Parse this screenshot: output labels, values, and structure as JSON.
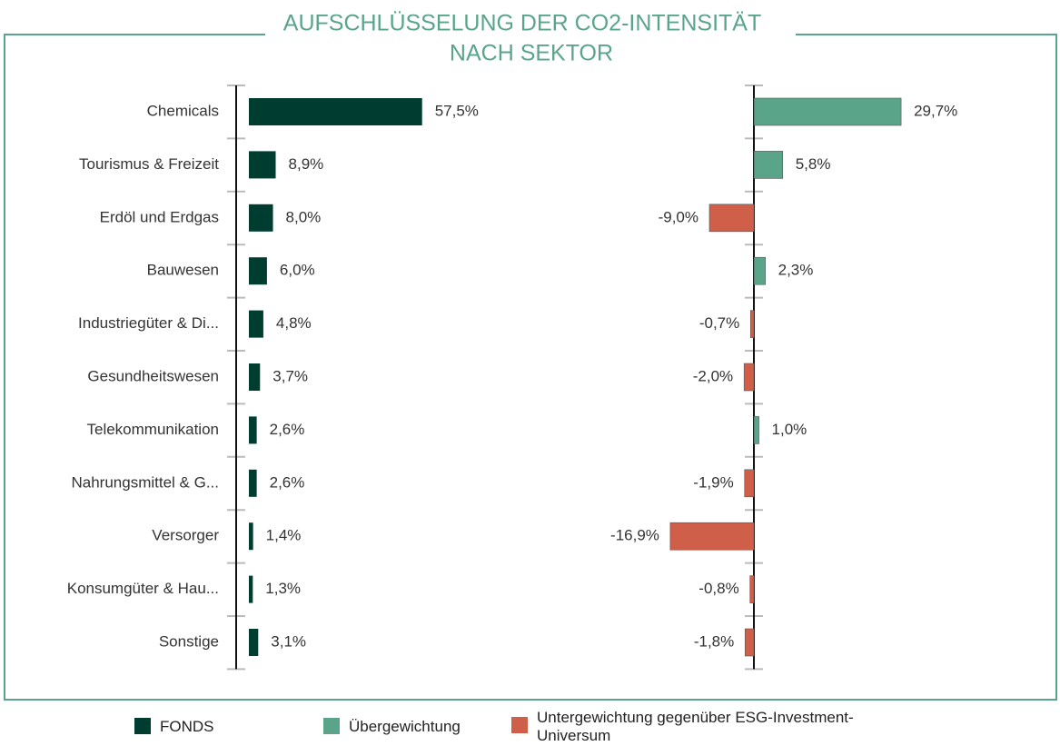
{
  "chart_data": [
    {
      "type": "hbar",
      "title": [
        "AUFSCHLÜSSELUNG DER CO2-INTENSITÄT",
        "NACH SEKTOR"
      ],
      "categories": [
        "Chemicals",
        "Tourismus & Freizeit",
        "Erdöl und Erdgas",
        "Bauwesen",
        "Industriegüter & Di...",
        "Gesundheitswesen",
        "Telekommunikation",
        "Nahrungsmittel & G...",
        "Versorger",
        "Konsumgüter & Hau...",
        "Sonstige"
      ],
      "xlim": [
        0,
        60
      ],
      "series": [
        {
          "name": "FONDS",
          "color": "#003d31",
          "values": [
            57.5,
            8.9,
            8.0,
            6.0,
            4.8,
            3.7,
            2.6,
            2.6,
            1.4,
            1.3,
            3.1
          ],
          "value_labels": [
            "57,5%",
            "8,9%",
            "8,0%",
            "6,0%",
            "4,8%",
            "3,7%",
            "2,6%",
            "2,6%",
            "1,4%",
            "1,3%",
            "3,1%"
          ]
        }
      ]
    },
    {
      "type": "hbar",
      "xlim": [
        -20,
        35
      ],
      "series": [
        {
          "name": "Übergewichtung",
          "color": "#5aa58a",
          "values": [
            29.7,
            5.8,
            null,
            2.3,
            null,
            null,
            1.0,
            null,
            null,
            null,
            null
          ],
          "value_labels": [
            "29,7%",
            "5,8%",
            null,
            "2,3%",
            null,
            null,
            "1,0%",
            null,
            null,
            null,
            null
          ]
        },
        {
          "name": "Untergewichtung gegenüber ESG-Investment-Universum",
          "color": "#cf5f49",
          "values": [
            null,
            null,
            -9.0,
            null,
            -0.7,
            -2.0,
            null,
            -1.9,
            -16.9,
            -0.8,
            -1.8
          ],
          "value_labels": [
            null,
            null,
            "-9,0%",
            null,
            "-0,7%",
            "-2,0%",
            null,
            "-1,9%",
            "-16,9%",
            "-0,8%",
            "-1,8%"
          ]
        }
      ]
    }
  ]
}
